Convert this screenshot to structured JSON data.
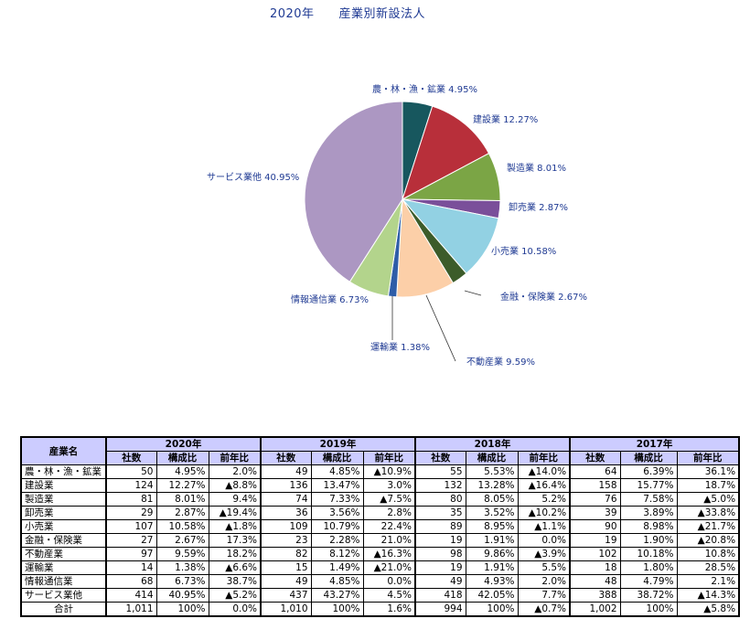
{
  "title": "2020年　　産業別新設法人",
  "chart_data": {
    "type": "pie",
    "title": "2020年　　産業別新設法人",
    "slices": [
      {
        "label": "農・林・漁・鉱業",
        "value": 4.95,
        "display": "農・林・漁・鉱業 4.95%",
        "color": "#17575e"
      },
      {
        "label": "建設業",
        "value": 12.27,
        "display": "建設業 12.27%",
        "color": "#b82f3a"
      },
      {
        "label": "製造業",
        "value": 8.01,
        "display": "製造業 8.01%",
        "color": "#7ba545"
      },
      {
        "label": "卸売業",
        "value": 2.87,
        "display": "卸売業 2.87%",
        "color": "#7a4f9a"
      },
      {
        "label": "小売業",
        "value": 10.58,
        "display": "小売業 10.58%",
        "color": "#92d1e3"
      },
      {
        "label": "金融・保険業",
        "value": 2.67,
        "display": "金融・保険業 2.67%",
        "color": "#3c5c2a"
      },
      {
        "label": "不動産業",
        "value": 9.59,
        "display": "不動産業 9.59%",
        "color": "#fccfa8"
      },
      {
        "label": "運輸業",
        "value": 1.38,
        "display": "運輸業 1.38%",
        "color": "#2e5da8"
      },
      {
        "label": "情報通信業",
        "value": 6.73,
        "display": "情報通信業 6.73%",
        "color": "#b3d48c"
      },
      {
        "label": "サービス業他",
        "value": 40.95,
        "display": "サービス業他 40.95%",
        "color": "#ac97c2"
      }
    ]
  },
  "table": {
    "header_label": "産業名",
    "years": [
      "2020年",
      "2019年",
      "2018年",
      "2017年"
    ],
    "subheaders": [
      "社数",
      "構成比",
      "前年比"
    ],
    "rows": [
      {
        "name": "農・林・漁・鉱業",
        "cells": [
          "50",
          "4.95%",
          "2.0%",
          "49",
          "4.85%",
          "▲10.9%",
          "55",
          "5.53%",
          "▲14.0%",
          "64",
          "6.39%",
          "36.1%"
        ]
      },
      {
        "name": "建設業",
        "cells": [
          "124",
          "12.27%",
          "▲8.8%",
          "136",
          "13.47%",
          "3.0%",
          "132",
          "13.28%",
          "▲16.4%",
          "158",
          "15.77%",
          "18.7%"
        ]
      },
      {
        "name": "製造業",
        "cells": [
          "81",
          "8.01%",
          "9.4%",
          "74",
          "7.33%",
          "▲7.5%",
          "80",
          "8.05%",
          "5.2%",
          "76",
          "7.58%",
          "▲5.0%"
        ]
      },
      {
        "name": "卸売業",
        "cells": [
          "29",
          "2.87%",
          "▲19.4%",
          "36",
          "3.56%",
          "2.8%",
          "35",
          "3.52%",
          "▲10.2%",
          "39",
          "3.89%",
          "▲33.8%"
        ]
      },
      {
        "name": "小売業",
        "cells": [
          "107",
          "10.58%",
          "▲1.8%",
          "109",
          "10.79%",
          "22.4%",
          "89",
          "8.95%",
          "▲1.1%",
          "90",
          "8.98%",
          "▲21.7%"
        ]
      },
      {
        "name": "金融・保険業",
        "cells": [
          "27",
          "2.67%",
          "17.3%",
          "23",
          "2.28%",
          "21.0%",
          "19",
          "1.91%",
          "0.0%",
          "19",
          "1.90%",
          "▲20.8%"
        ]
      },
      {
        "name": "不動産業",
        "cells": [
          "97",
          "9.59%",
          "18.2%",
          "82",
          "8.12%",
          "▲16.3%",
          "98",
          "9.86%",
          "▲3.9%",
          "102",
          "10.18%",
          "10.8%"
        ]
      },
      {
        "name": "運輸業",
        "cells": [
          "14",
          "1.38%",
          "▲6.6%",
          "15",
          "1.49%",
          "▲21.0%",
          "19",
          "1.91%",
          "5.5%",
          "18",
          "1.80%",
          "28.5%"
        ]
      },
      {
        "name": "情報通信業",
        "cells": [
          "68",
          "6.73%",
          "38.7%",
          "49",
          "4.85%",
          "0.0%",
          "49",
          "4.93%",
          "2.0%",
          "48",
          "4.79%",
          "2.1%"
        ]
      },
      {
        "name": "サービス業他",
        "cells": [
          "414",
          "40.95%",
          "▲5.2%",
          "437",
          "43.27%",
          "4.5%",
          "418",
          "42.05%",
          "7.7%",
          "388",
          "38.72%",
          "▲14.3%"
        ]
      }
    ],
    "total": {
      "name": "合計",
      "cells": [
        "1,011",
        "100%",
        "0.0%",
        "1,010",
        "100%",
        "1.6%",
        "994",
        "100%",
        "▲0.7%",
        "1,002",
        "100%",
        "▲5.8%"
      ]
    }
  }
}
